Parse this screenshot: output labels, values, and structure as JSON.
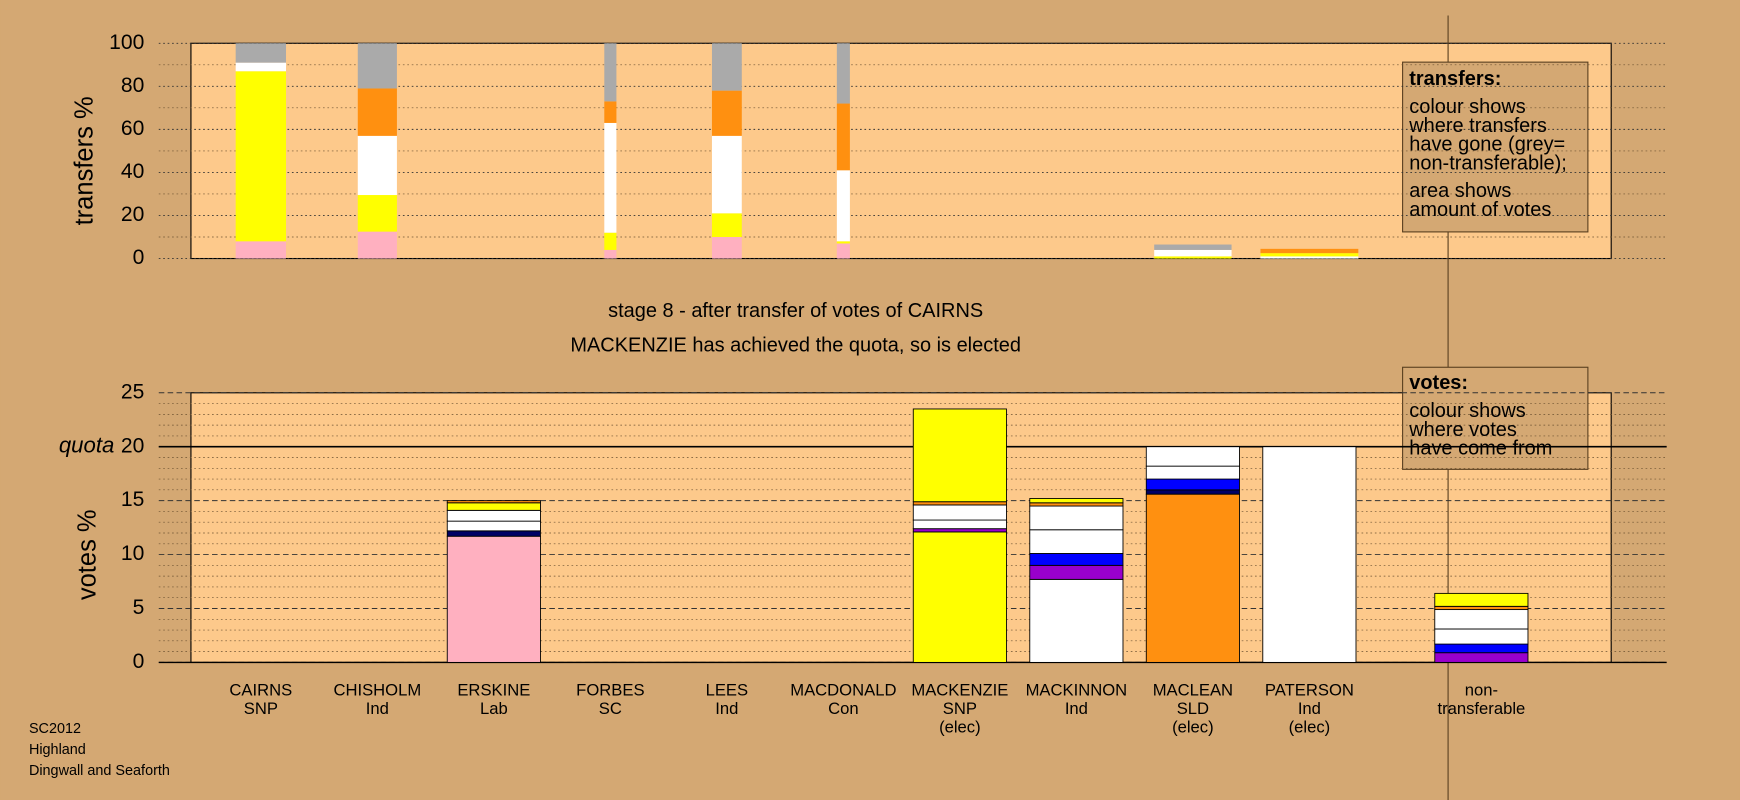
{
  "footer_lines": [
    "SC2012",
    "Highland",
    "Dingwall and Seaforth"
  ],
  "chart_data": [
    {
      "type": "stacked-bar",
      "ylabel": "transfers %",
      "ylim": [
        0,
        100
      ],
      "yticks": [
        0,
        20,
        40,
        60,
        80,
        100
      ],
      "yminor": [
        10,
        30,
        50,
        70,
        90
      ],
      "stacks": [
        {
          "width": 0.54,
          "segments": [
            {
              "color": "#ffb0c0",
              "value": 8
            },
            {
              "color": "#ffff00",
              "value": 79
            },
            {
              "color": "#ffffff",
              "value": 4
            },
            {
              "color": "#aaaaaa",
              "value": 9
            }
          ]
        },
        {
          "width": 0.42,
          "segments": [
            {
              "color": "#ffb0c0",
              "value": 12.5
            },
            {
              "color": "#ffff00",
              "value": 17
            },
            {
              "color": "#ffffff",
              "value": 27.5
            },
            {
              "color": "#ff9010",
              "value": 22
            },
            {
              "color": "#aaaaaa",
              "value": 21
            }
          ]
        },
        null,
        {
          "width": 0.13,
          "segments": [
            {
              "color": "#ffb0c0",
              "value": 4
            },
            {
              "color": "#ffff00",
              "value": 8
            },
            {
              "color": "#ffffff",
              "value": 51
            },
            {
              "color": "#ff9010",
              "value": 10
            },
            {
              "color": "#aaaaaa",
              "value": 27
            }
          ]
        },
        {
          "width": 0.32,
          "segments": [
            {
              "color": "#ffb0c0",
              "value": 10
            },
            {
              "color": "#ffff00",
              "value": 11
            },
            {
              "color": "#ffffff",
              "value": 36
            },
            {
              "color": "#ff9010",
              "value": 21
            },
            {
              "color": "#aaaaaa",
              "value": 22
            }
          ]
        },
        {
          "width": 0.14,
          "segments": [
            {
              "color": "#ffb0c0",
              "value": 7
            },
            {
              "color": "#ffff00",
              "value": 1
            },
            {
              "color": "#ffffff",
              "value": 33
            },
            {
              "color": "#ff9010",
              "value": 31
            },
            {
              "color": "#aaaaaa",
              "value": 28
            }
          ]
        },
        null,
        null,
        {
          "width": 0.83,
          "segments": [
            {
              "color": "#ffff00",
              "value": 1
            },
            {
              "color": "#ffffff",
              "value": 3
            },
            {
              "color": "#aaaaaa",
              "value": 2.5
            }
          ]
        },
        {
          "width": 1.05,
          "segments": [
            {
              "color": "#ffffff",
              "value": 1
            },
            {
              "color": "#ffff00",
              "value": 1.5
            },
            {
              "color": "#ff9010",
              "value": 2
            }
          ]
        }
      ],
      "note": {
        "title": "transfers:",
        "paragraphs": [
          [
            "colour shows",
            "where transfers",
            "have gone (grey=",
            "non-transferable);"
          ],
          [
            "area shows",
            "amount of votes"
          ]
        ]
      }
    },
    {
      "type": "stacked-bar",
      "title": "stage 8 - after transfer of votes of CAIRNS",
      "subtitle": "MACKENZIE has achieved the quota, so is elected",
      "ylabel": "votes %",
      "ylim": [
        0,
        25
      ],
      "yticks": [
        0,
        5,
        10,
        15,
        20,
        25
      ],
      "yminor": [
        1,
        2,
        3,
        4,
        6,
        7,
        8,
        9,
        11,
        12,
        13,
        14,
        16,
        17,
        18,
        19,
        21,
        22,
        23,
        24
      ],
      "quota": {
        "label": "quota",
        "value": 20
      },
      "categories": [
        [
          "CAIRNS",
          "SNP"
        ],
        [
          "CHISHOLM",
          "Ind"
        ],
        [
          "ERSKINE",
          "Lab"
        ],
        [
          "FORBES",
          "SC"
        ],
        [
          "LEES",
          "Ind"
        ],
        [
          "MACDONALD",
          "Con"
        ],
        [
          "MACKENZIE",
          "SNP",
          "(elec)"
        ],
        [
          "MACKINNON",
          "Ind"
        ],
        [
          "MACLEAN",
          "SLD",
          "(elec)"
        ],
        [
          "PATERSON",
          "Ind",
          "(elec)"
        ],
        [
          "non-",
          "transferable"
        ]
      ],
      "stacks": [
        null,
        null,
        [
          {
            "color": "#ffb0c0",
            "value": 11.7
          },
          {
            "color": "#000066",
            "value": 0.5
          },
          {
            "color": "#ffffff",
            "value": 0.9
          },
          {
            "color": "#ffffff",
            "value": 1.0
          },
          {
            "color": "#ffff00",
            "value": 0.7
          },
          {
            "color": "#ff9010",
            "value": 0.2
          }
        ],
        null,
        null,
        null,
        [
          {
            "color": "#ffff00",
            "value": 12.1
          },
          {
            "color": "#9900cc",
            "value": 0.3
          },
          {
            "color": "#ffffff",
            "value": 0.8
          },
          {
            "color": "#ffffff",
            "value": 1.4
          },
          {
            "color": "#ff9010",
            "value": 0.3
          },
          {
            "color": "#ffff00",
            "value": 8.6
          }
        ],
        [
          {
            "color": "#ffffff",
            "value": 7.7
          },
          {
            "color": "#9900cc",
            "value": 1.3
          },
          {
            "color": "#0000ff",
            "value": 1.1
          },
          {
            "color": "#ffffff",
            "value": 2.2
          },
          {
            "color": "#ffffff",
            "value": 2.2
          },
          {
            "color": "#ff9010",
            "value": 0.3
          },
          {
            "color": "#ffff00",
            "value": 0.4
          }
        ],
        [
          {
            "color": "#ff9010",
            "value": 15.6
          },
          {
            "color": "#000066",
            "value": 0.4
          },
          {
            "color": "#0000ff",
            "value": 1.0
          },
          {
            "color": "#ffffff",
            "value": 1.2
          },
          {
            "color": "#ffffff",
            "value": 1.8
          }
        ],
        [
          {
            "color": "#ffffff",
            "value": 20
          }
        ],
        [
          {
            "color": "#9900cc",
            "value": 0.9
          },
          {
            "color": "#0000ff",
            "value": 0.8
          },
          {
            "color": "#ffffff",
            "value": 1.4
          },
          {
            "color": "#ffffff",
            "value": 1.8
          },
          {
            "color": "#ff9010",
            "value": 0.3
          },
          {
            "color": "#ffff00",
            "value": 1.2
          }
        ]
      ],
      "note": {
        "title": "votes:",
        "paragraphs": [
          [
            "colour shows",
            "where votes",
            "have come from"
          ]
        ]
      }
    }
  ]
}
